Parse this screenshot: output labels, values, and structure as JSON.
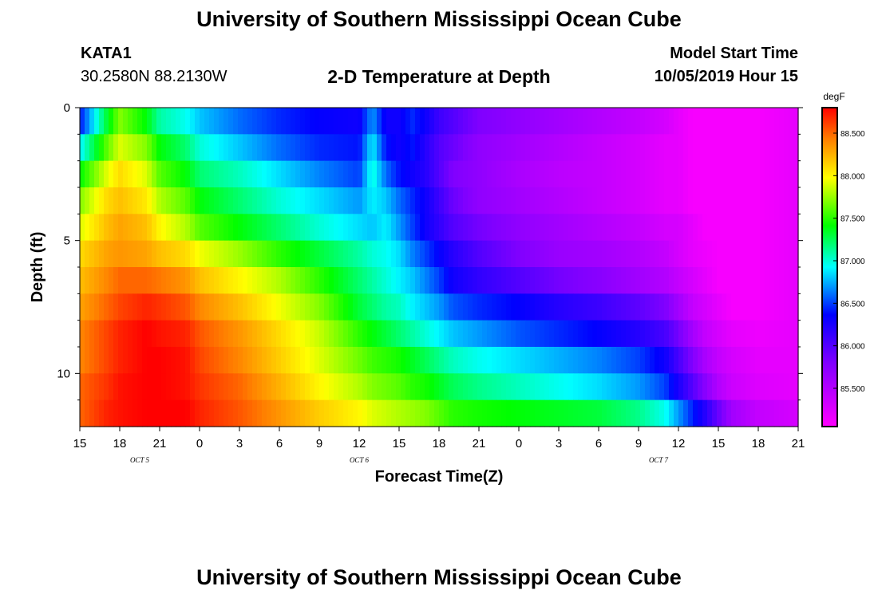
{
  "header": {
    "title": "University of Southern Mississippi Ocean Cube",
    "station_id": "KATA1",
    "station_coords": "30.2580N 88.2130W",
    "subtitle": "2-D Temperature at Depth",
    "model_start_label": "Model Start Time",
    "model_start_value": "10/05/2019 Hour 15"
  },
  "footer": {
    "title": "University of Southern Mississippi Ocean Cube"
  },
  "chart_data": {
    "type": "heatmap",
    "title": "2-D Temperature at Depth",
    "xlabel": "Forecast Time(Z)",
    "ylabel": "Depth (ft)",
    "x_tick_labels": [
      "15",
      "18",
      "21",
      "0",
      "3",
      "6",
      "9",
      "12",
      "15",
      "18",
      "21",
      "0",
      "3",
      "6",
      "9",
      "12",
      "15",
      "18",
      "21"
    ],
    "x_day_labels": [
      {
        "label": "OCT 5",
        "tick_index": 1.5
      },
      {
        "label": "OCT 6",
        "tick_index": 7
      },
      {
        "label": "OCT 7",
        "tick_index": 14.5
      }
    ],
    "x_range_hours": [
      0,
      54
    ],
    "y_ticks": [
      0,
      5,
      10
    ],
    "y_minor_ticks": [
      1,
      2,
      3,
      4,
      6,
      7,
      8,
      9,
      11
    ],
    "y_range_ft": [
      0,
      12
    ],
    "colorbar": {
      "unit": "degF",
      "min": 85.05,
      "max": 88.8,
      "tick_values": [
        85.5,
        86.0,
        86.5,
        87.0,
        87.5,
        88.0,
        88.5
      ],
      "tick_labels": [
        "85.500",
        "86.000",
        "86.500",
        "87.000",
        "87.500",
        "88.000",
        "88.500"
      ]
    },
    "grid": false,
    "depth_layers_ft": [
      0.5,
      1.5,
      2.5,
      3.5,
      4.5,
      5.5,
      6.5,
      7.5,
      8.5,
      9.5,
      10.5,
      11.5
    ],
    "time_hours": [
      0,
      2,
      3,
      5,
      6,
      8,
      9,
      12,
      15,
      18,
      21,
      22,
      23,
      24,
      25,
      26,
      27,
      28,
      30,
      33,
      36,
      39,
      42,
      44,
      45,
      46,
      47,
      48,
      49,
      51,
      54
    ],
    "temperature_degF": [
      [
        86.4,
        87.3,
        87.7,
        87.4,
        87.1,
        86.95,
        86.8,
        86.6,
        86.45,
        86.35,
        86.3,
        86.7,
        86.3,
        86.3,
        86.45,
        86.3,
        86.1,
        86.0,
        85.8,
        85.7,
        85.6,
        85.5,
        85.4,
        85.3,
        85.2,
        85.1,
        85.1,
        85.1,
        85.1,
        85.1,
        85.2
      ],
      [
        86.9,
        87.6,
        87.9,
        87.7,
        87.4,
        87.2,
        87.0,
        86.8,
        86.6,
        86.45,
        86.4,
        86.9,
        86.4,
        86.3,
        86.4,
        86.2,
        86.0,
        85.9,
        85.7,
        85.6,
        85.5,
        85.4,
        85.3,
        85.2,
        85.2,
        85.1,
        85.1,
        85.1,
        85.1,
        85.1,
        85.2
      ],
      [
        87.4,
        87.9,
        88.1,
        87.9,
        87.6,
        87.4,
        87.2,
        87.05,
        86.85,
        86.65,
        86.5,
        87.0,
        86.6,
        86.4,
        86.3,
        86.2,
        86.0,
        85.8,
        85.7,
        85.55,
        85.45,
        85.4,
        85.3,
        85.2,
        85.2,
        85.1,
        85.1,
        85.1,
        85.1,
        85.1,
        85.2
      ],
      [
        87.7,
        88.1,
        88.2,
        88.05,
        87.8,
        87.6,
        87.4,
        87.2,
        87.0,
        86.85,
        86.7,
        86.9,
        86.8,
        86.6,
        86.45,
        86.3,
        86.1,
        85.9,
        85.7,
        85.6,
        85.5,
        85.4,
        85.3,
        85.2,
        85.2,
        85.1,
        85.1,
        85.1,
        85.1,
        85.1,
        85.2
      ],
      [
        87.9,
        88.2,
        88.3,
        88.2,
        88.0,
        87.8,
        87.6,
        87.4,
        87.2,
        87.0,
        86.85,
        86.8,
        86.9,
        86.7,
        86.5,
        86.3,
        86.15,
        86.0,
        85.85,
        85.7,
        85.6,
        85.5,
        85.4,
        85.3,
        85.3,
        85.2,
        85.1,
        85.1,
        85.1,
        85.1,
        85.2
      ],
      [
        88.1,
        88.3,
        88.35,
        88.3,
        88.2,
        88.1,
        87.95,
        87.75,
        87.5,
        87.3,
        87.1,
        87.0,
        86.95,
        86.85,
        86.65,
        86.5,
        86.35,
        86.2,
        86.0,
        85.8,
        85.65,
        85.6,
        85.5,
        85.4,
        85.3,
        85.2,
        85.15,
        85.1,
        85.1,
        85.1,
        85.2
      ],
      [
        88.2,
        88.4,
        88.5,
        88.5,
        88.45,
        88.35,
        88.2,
        88.0,
        87.8,
        87.5,
        87.2,
        87.1,
        87.0,
        86.9,
        86.8,
        86.65,
        86.5,
        86.3,
        86.15,
        86.0,
        85.85,
        85.75,
        85.6,
        85.5,
        85.4,
        85.3,
        85.2,
        85.1,
        85.1,
        85.1,
        85.2
      ],
      [
        88.3,
        88.5,
        88.6,
        88.7,
        88.65,
        88.55,
        88.4,
        88.2,
        87.95,
        87.7,
        87.3,
        87.2,
        87.1,
        87.05,
        86.9,
        86.8,
        86.7,
        86.55,
        86.45,
        86.35,
        86.2,
        86.1,
        85.95,
        85.8,
        85.6,
        85.4,
        85.3,
        85.2,
        85.1,
        85.1,
        85.2
      ],
      [
        88.4,
        88.6,
        88.7,
        88.8,
        88.75,
        88.7,
        88.55,
        88.35,
        88.1,
        87.85,
        87.5,
        87.4,
        87.3,
        87.2,
        87.1,
        87.0,
        86.9,
        86.8,
        86.7,
        86.55,
        86.45,
        86.35,
        86.2,
        86.05,
        85.85,
        85.6,
        85.4,
        85.3,
        85.2,
        85.15,
        85.2
      ],
      [
        88.4,
        88.6,
        88.7,
        88.8,
        88.8,
        88.75,
        88.6,
        88.4,
        88.15,
        87.9,
        87.65,
        87.55,
        87.5,
        87.45,
        87.35,
        87.25,
        87.15,
        87.05,
        86.95,
        86.85,
        86.75,
        86.65,
        86.5,
        86.3,
        86.05,
        85.8,
        85.55,
        85.4,
        85.3,
        85.2,
        85.2
      ],
      [
        88.5,
        88.65,
        88.75,
        88.8,
        88.8,
        88.75,
        88.65,
        88.5,
        88.25,
        88.0,
        87.8,
        87.7,
        87.65,
        87.6,
        87.5,
        87.45,
        87.35,
        87.25,
        87.15,
        87.05,
        86.95,
        86.85,
        86.7,
        86.5,
        86.25,
        86.0,
        85.75,
        85.5,
        85.35,
        85.25,
        85.2
      ],
      [
        88.5,
        88.7,
        88.75,
        88.8,
        88.8,
        88.8,
        88.7,
        88.55,
        88.35,
        88.15,
        88.0,
        87.9,
        87.85,
        87.8,
        87.75,
        87.7,
        87.6,
        87.5,
        87.45,
        87.4,
        87.35,
        87.3,
        87.15,
        86.95,
        86.7,
        86.45,
        86.2,
        85.9,
        85.6,
        85.4,
        85.3
      ]
    ]
  }
}
